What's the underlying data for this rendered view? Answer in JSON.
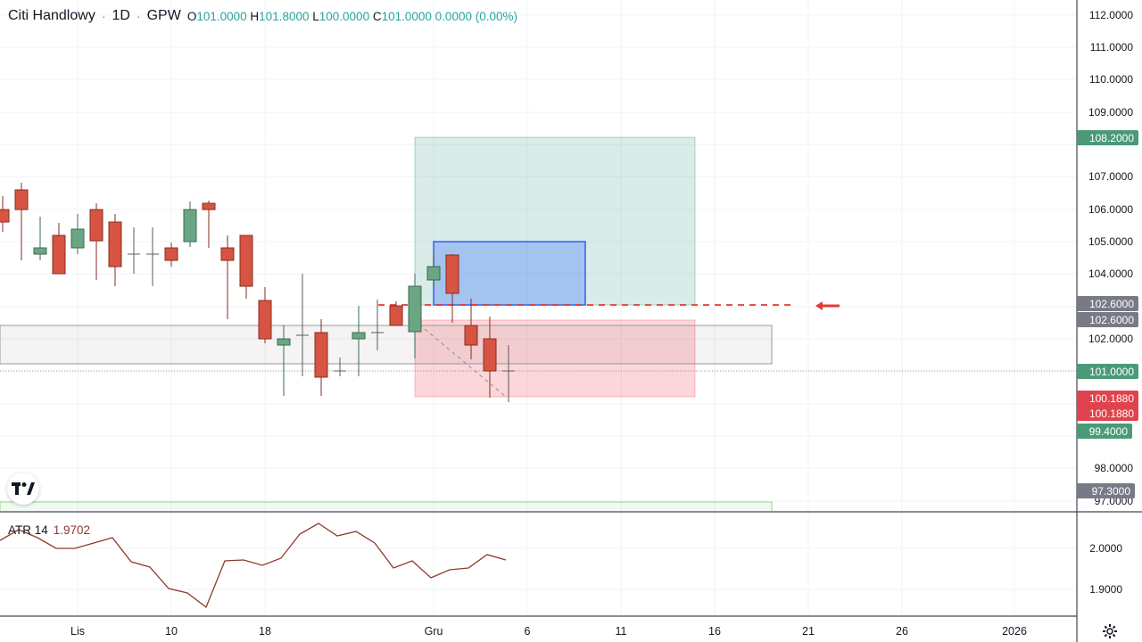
{
  "legend": {
    "symbol": "Citi Handlowy",
    "dot1": "·",
    "interval": "1D",
    "dot2": "·",
    "exchange": "GPW",
    "o_key": "O",
    "o_val": "101.0000",
    "h_key": "H",
    "h_val": "101.8000",
    "l_key": "L",
    "l_val": "100.0000",
    "c_key": "C",
    "c_val": "101.0000",
    "change": "0.0000 (0.00%)"
  },
  "atr": {
    "name": "ATR 14",
    "value": "1.9702",
    "axis_ticks": [
      "2.0000",
      "1.9000"
    ]
  },
  "colors": {
    "up": "#6ba583",
    "down": "#d75442",
    "atr_line": "#8d3a2c",
    "target": "#4a9a78",
    "stop": "#e0434d",
    "grey_tag": "#787b86"
  },
  "price_axis": {
    "ticks": [
      "112.0000",
      "111.0000",
      "110.0000",
      "109.0000",
      "107.0000",
      "106.0000",
      "105.0000",
      "104.0000",
      "102.0000",
      "98.0000",
      "97.0000"
    ],
    "tags": [
      {
        "label": "108.2000",
        "color": "#4a9a78"
      },
      {
        "label": "102.6000",
        "color": "#787b86"
      },
      {
        "label": "102.6000",
        "color": "#787b86"
      },
      {
        "label": "101.0000",
        "color": "#4a9a78"
      },
      {
        "label": "100.1880",
        "color": "#e0434d"
      },
      {
        "label": "100.1880",
        "color": "#e0434d"
      },
      {
        "label": "99.4000",
        "color": "#4a9a78"
      },
      {
        "label": "97.3000",
        "color": "#787b86"
      }
    ]
  },
  "time_axis": {
    "ticks": [
      "Lis",
      "10",
      "18",
      "Gru",
      "6",
      "11",
      "16",
      "21",
      "26",
      "2026"
    ]
  },
  "icons": {
    "logo": "tradingview-logo-icon",
    "arrow": "left-arrow-icon",
    "settings": "gear-icon"
  }
}
